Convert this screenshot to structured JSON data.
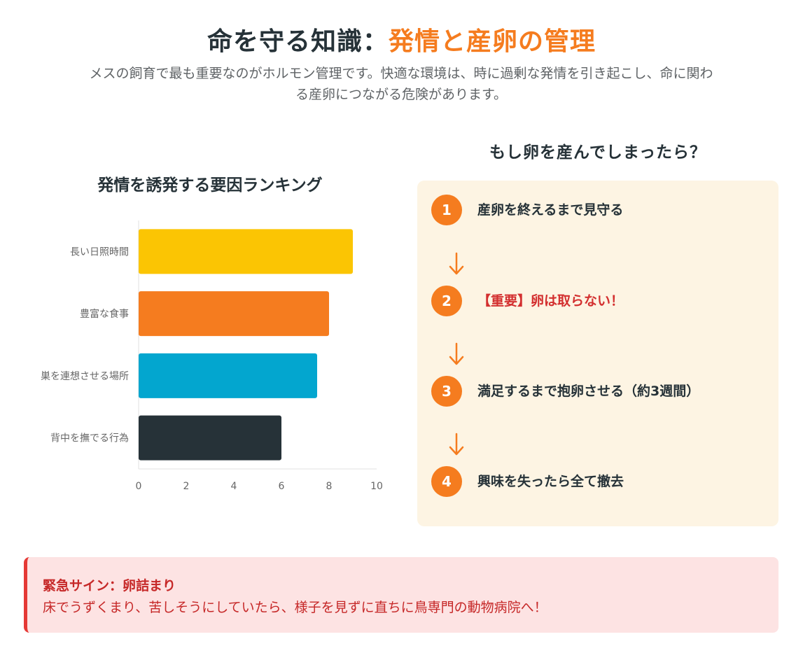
{
  "header": {
    "title_main": "命を守る知識：",
    "title_accent": "発情と産卵の管理",
    "subtitle": "メスの飼育で最も重要なのがホルモン管理です。快適な環境は、時に過剰な発情を引き起こし、命に関わる産卵につながる危険があります。"
  },
  "chart_title": "発情を誘発する要因ランキング",
  "chart_data": {
    "type": "bar",
    "orientation": "horizontal",
    "categories": [
      "長い日照時間",
      "豊富な食事",
      "巣を連想させる場所",
      "背中を撫でる行為"
    ],
    "values": [
      9,
      8,
      7.5,
      6
    ],
    "colors": [
      "#fbc503",
      "#f57c1f",
      "#03a6cf",
      "#263238"
    ],
    "xlim": [
      0,
      10
    ],
    "xticks": [
      "0",
      "2",
      "4",
      "6",
      "8",
      "10"
    ],
    "grid": false
  },
  "flow": {
    "title": "もし卵を産んでしまったら？",
    "steps": [
      {
        "num": "1",
        "text": "産卵を終えるまで見守る"
      },
      {
        "num": "2",
        "text": "【重要】卵は取らない！"
      },
      {
        "num": "3",
        "text": "満足するまで抱卵させる（約3週間）"
      },
      {
        "num": "4",
        "text": "興味を失ったら全て撤去"
      }
    ],
    "arrow_color": "#f57c1f"
  },
  "alert": {
    "title": "緊急サイン：卵詰まり",
    "body": "床でうずくまり、苦しそうにしていたら、様子を見ずに直ちに鳥専門の動物病院へ！"
  }
}
